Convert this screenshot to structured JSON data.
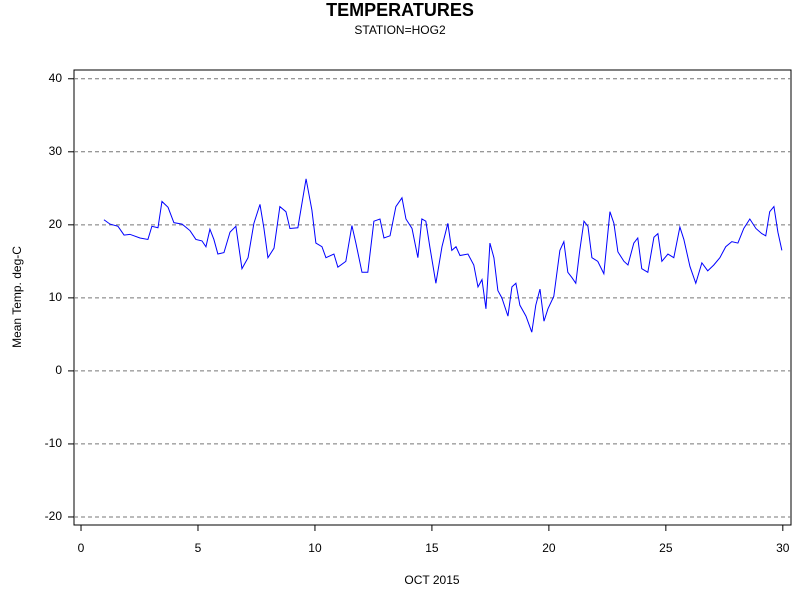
{
  "chart_data": {
    "type": "line",
    "title": "TEMPERATURES",
    "subtitle": "STATION=HOG2",
    "xlabel": "OCT 2015",
    "ylabel": "Mean Temp. deg-C",
    "color": "#0000ff",
    "grid": true,
    "xlim": [
      -0.3,
      30.35
    ],
    "ylim": [
      -21.1,
      41.2
    ],
    "xticks": [
      0,
      5,
      10,
      15,
      20,
      25,
      30
    ],
    "yticks": [
      -20,
      -10,
      0,
      10,
      20,
      30,
      40
    ],
    "x": [
      0.98,
      1.24,
      1.58,
      1.84,
      2.09,
      2.52,
      2.86,
      3.03,
      3.29,
      3.46,
      3.72,
      3.97,
      4.32,
      4.66,
      4.91,
      5.17,
      5.34,
      5.51,
      5.68,
      5.85,
      6.11,
      6.37,
      6.62,
      6.88,
      7.14,
      7.39,
      7.65,
      7.82,
      7.99,
      8.25,
      8.5,
      8.76,
      8.93,
      9.27,
      9.62,
      9.87,
      10.04,
      10.3,
      10.47,
      10.81,
      10.98,
      11.32,
      11.58,
      11.75,
      12.01,
      12.26,
      12.52,
      12.78,
      12.95,
      13.21,
      13.46,
      13.72,
      13.89,
      14.15,
      14.4,
      14.57,
      14.74,
      14.91,
      15.17,
      15.43,
      15.68,
      15.85,
      16.03,
      16.2,
      16.54,
      16.79,
      16.97,
      17.14,
      17.31,
      17.48,
      17.65,
      17.82,
      17.99,
      18.25,
      18.42,
      18.59,
      18.76,
      19.02,
      19.27,
      19.44,
      19.62,
      19.79,
      19.96,
      20.21,
      20.47,
      20.64,
      20.81,
      20.98,
      21.15,
      21.32,
      21.5,
      21.67,
      21.84,
      22.09,
      22.35,
      22.61,
      22.78,
      22.95,
      23.21,
      23.38,
      23.63,
      23.8,
      23.97,
      24.23,
      24.49,
      24.66,
      24.83,
      25.09,
      25.34,
      25.6,
      25.77,
      26.03,
      26.28,
      26.54,
      26.79,
      27.05,
      27.31,
      27.56,
      27.82,
      28.08,
      28.33,
      28.59,
      28.85,
      29.1,
      29.27,
      29.44,
      29.62,
      29.79,
      29.96
    ],
    "values": [
      20.7,
      20.1,
      19.8,
      18.6,
      18.7,
      18.2,
      18.0,
      19.8,
      19.6,
      23.2,
      22.4,
      20.3,
      20.1,
      19.2,
      18.0,
      17.8,
      17.0,
      19.4,
      18.0,
      16.0,
      16.2,
      19.0,
      19.8,
      14.0,
      15.5,
      20.2,
      22.8,
      19.5,
      15.5,
      16.8,
      22.5,
      21.8,
      19.5,
      19.6,
      26.3,
      22.0,
      17.5,
      17.0,
      15.5,
      16.0,
      14.2,
      15.0,
      19.9,
      17.5,
      13.5,
      13.5,
      20.5,
      20.8,
      18.2,
      18.5,
      22.5,
      23.7,
      20.8,
      19.5,
      15.5,
      20.8,
      20.5,
      17.0,
      12.0,
      17.0,
      20.2,
      16.5,
      17.0,
      15.8,
      16.0,
      14.5,
      11.5,
      12.5,
      8.5,
      17.5,
      15.5,
      11.0,
      10.0,
      7.5,
      11.5,
      12.0,
      9.0,
      7.5,
      5.3,
      9.0,
      11.2,
      6.8,
      8.5,
      10.2,
      16.5,
      17.7,
      13.5,
      12.8,
      12.0,
      16.5,
      20.5,
      19.8,
      15.5,
      15.0,
      13.3,
      21.8,
      20.2,
      16.3,
      15.0,
      14.5,
      17.5,
      18.2,
      14.0,
      13.5,
      18.3,
      18.8,
      15.0,
      16.0,
      15.5,
      19.7,
      18.0,
      14.3,
      12.0,
      14.8,
      13.7,
      14.5,
      15.5,
      17.0,
      17.7,
      17.5,
      19.5,
      20.8,
      19.5,
      18.8,
      18.5,
      21.8,
      22.5,
      19.0,
      16.5
    ]
  }
}
